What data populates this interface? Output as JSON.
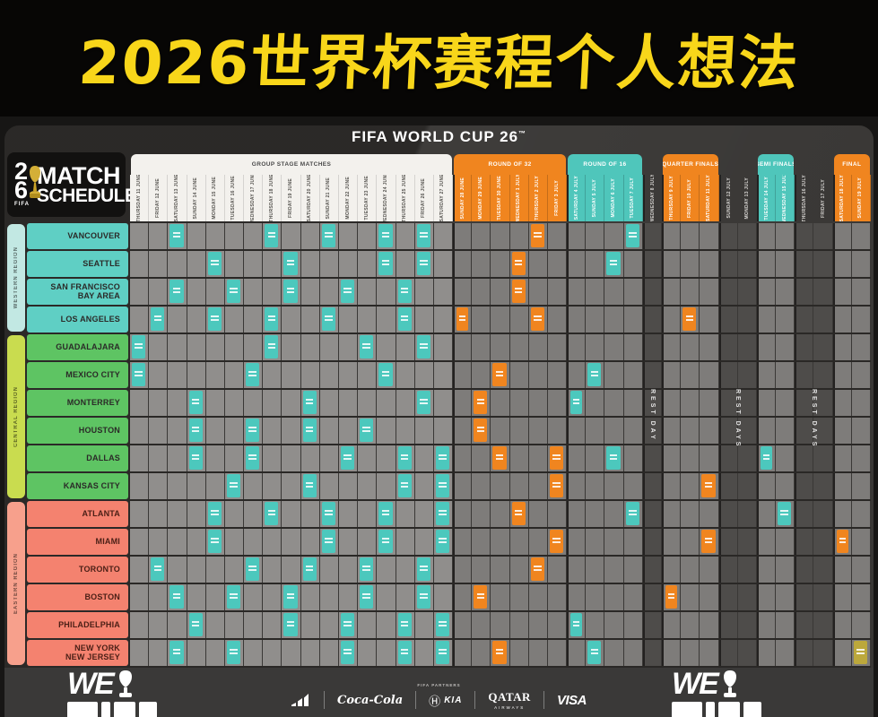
{
  "banner": {
    "title": "2026世界杯赛程个人想法"
  },
  "poster_header": {
    "fifa_text": "FIFA WORLD CUP",
    "logo_26": "26",
    "tm": "™"
  },
  "match_logo": {
    "digit_top": "2",
    "digit_bottom": "6",
    "fifa_small": "FIFA",
    "title_line1": "MATCH",
    "title_line2": "SCHEDULE"
  },
  "colors": {
    "banner_yellow": "#F8D61A",
    "teal": "#4CC8BD",
    "orange": "#F0851F",
    "final_gold": "#BCA83C",
    "western_teal": "#5FCFC4",
    "central_green": "#5EC463",
    "eastern_salmon": "#F4826F"
  },
  "schedule": {
    "phases": [
      {
        "id": "group",
        "label": "GROUP STAGE MATCHES",
        "start": 0,
        "end": 16,
        "style": "white"
      },
      {
        "id": "r32",
        "label": "ROUND OF 32",
        "start": 17,
        "end": 22,
        "style": "orange"
      },
      {
        "id": "r16",
        "label": "ROUND OF 16",
        "start": 23,
        "end": 26,
        "style": "teal"
      },
      {
        "id": "rest1",
        "label": "",
        "start": 27,
        "end": 27,
        "style": "rest"
      },
      {
        "id": "qf",
        "label": "QUARTER FINALS",
        "start": 28,
        "end": 30,
        "style": "orange"
      },
      {
        "id": "rest2",
        "label": "",
        "start": 31,
        "end": 32,
        "style": "rest"
      },
      {
        "id": "sf",
        "label": "SEMI FINALS",
        "start": 33,
        "end": 34,
        "style": "teal"
      },
      {
        "id": "rest3",
        "label": "",
        "start": 35,
        "end": 36,
        "style": "rest"
      },
      {
        "id": "final",
        "label": "FINAL",
        "start": 37,
        "end": 38,
        "style": "orange"
      }
    ],
    "columns": [
      "THURSDAY 11 JUNE",
      "FRIDAY 12 JUNE",
      "SATURDAY 13 JUNE",
      "SUNDAY 14 JUNE",
      "MONDAY 15 JUNE",
      "TUESDAY 16 JUNE",
      "WEDNESDAY 17 JUNE",
      "THURSDAY 18 JUNE",
      "FRIDAY 19 JUNE",
      "SATURDAY 20 JUNE",
      "SUNDAY 21 JUNE",
      "MONDAY 22 JUNE",
      "TUESDAY 23 JUNE",
      "WEDNESDAY 24 JUNE",
      "THURSDAY 25 JUNE",
      "FRIDAY 26 JUNE",
      "SATURDAY 27 JUNE",
      "SUNDAY 28 JUNE",
      "MONDAY 29 JUNE",
      "TUESDAY 30 JUNE",
      "WEDNESDAY 1 JULY",
      "THURSDAY 2 JULY",
      "FRIDAY 3 JULY",
      "SATURDAY 4 JULY",
      "SUNDAY 5 JULY",
      "MONDAY 6 JULY",
      "TUESDAY 7 JULY",
      "WEDNESDAY 8 JULY",
      "THURSDAY 9 JULY",
      "FRIDAY 10 JULY",
      "SATURDAY 11 JULY",
      "SUNDAY 12 JULY",
      "MONDAY 13 JULY",
      "TUESDAY 14 JULY",
      "WEDNESDAY 15 JULY",
      "THURSDAY 16 JULY",
      "FRIDAY 17 JULY",
      "SATURDAY 18 JULY",
      "SUNDAY 19 JULY"
    ],
    "rest_overlays": [
      {
        "col": 27,
        "span": 1,
        "label": "REST DAY"
      },
      {
        "col": 31,
        "span": 2,
        "label": "REST DAYS"
      },
      {
        "col": 35,
        "span": 2,
        "label": "REST DAYS"
      }
    ],
    "regions": [
      {
        "name": "WESTERN REGION",
        "row_start": 0,
        "row_end": 3,
        "class": "rb-w",
        "city_class": "w"
      },
      {
        "name": "CENTRAL REGION",
        "row_start": 4,
        "row_end": 9,
        "class": "rb-c",
        "city_class": "c"
      },
      {
        "name": "EASTERN REGION",
        "row_start": 10,
        "row_end": 15,
        "class": "rb-e",
        "city_class": "e"
      }
    ],
    "cities": [
      "VANCOUVER",
      "SEATTLE",
      "SAN FRANCISCO\nBAY AREA",
      "LOS ANGELES",
      "GUADALAJARA",
      "MEXICO CITY",
      "MONTERREY",
      "HOUSTON",
      "DALLAS",
      "KANSAS CITY",
      "ATLANTA",
      "MIAMI",
      "TORONTO",
      "BOSTON",
      "PHILADELPHIA",
      "NEW YORK\nNEW JERSEY"
    ],
    "matches": [
      [
        0,
        2,
        0
      ],
      [
        0,
        7,
        0
      ],
      [
        0,
        10,
        0
      ],
      [
        0,
        13,
        0
      ],
      [
        0,
        15,
        0
      ],
      [
        0,
        21,
        1
      ],
      [
        0,
        26,
        0
      ],
      [
        1,
        4,
        0
      ],
      [
        1,
        8,
        0
      ],
      [
        1,
        13,
        0
      ],
      [
        1,
        15,
        0
      ],
      [
        1,
        20,
        1
      ],
      [
        1,
        25,
        0
      ],
      [
        2,
        2,
        0
      ],
      [
        2,
        5,
        0
      ],
      [
        2,
        8,
        0
      ],
      [
        2,
        11,
        0
      ],
      [
        2,
        14,
        0
      ],
      [
        2,
        20,
        1
      ],
      [
        3,
        1,
        0
      ],
      [
        3,
        4,
        0
      ],
      [
        3,
        7,
        0
      ],
      [
        3,
        10,
        0
      ],
      [
        3,
        14,
        0
      ],
      [
        3,
        17,
        1
      ],
      [
        3,
        21,
        1
      ],
      [
        3,
        29,
        1
      ],
      [
        4,
        0,
        0
      ],
      [
        4,
        7,
        0
      ],
      [
        4,
        12,
        0
      ],
      [
        4,
        15,
        0
      ],
      [
        5,
        0,
        0
      ],
      [
        5,
        6,
        0
      ],
      [
        5,
        13,
        0
      ],
      [
        5,
        19,
        1
      ],
      [
        5,
        24,
        0
      ],
      [
        6,
        3,
        0
      ],
      [
        6,
        9,
        0
      ],
      [
        6,
        15,
        0
      ],
      [
        6,
        18,
        1
      ],
      [
        6,
        23,
        0
      ],
      [
        7,
        3,
        0
      ],
      [
        7,
        6,
        0
      ],
      [
        7,
        9,
        0
      ],
      [
        7,
        12,
        0
      ],
      [
        7,
        18,
        1
      ],
      [
        8,
        3,
        0
      ],
      [
        8,
        6,
        0
      ],
      [
        8,
        11,
        0
      ],
      [
        8,
        14,
        0
      ],
      [
        8,
        16,
        0
      ],
      [
        8,
        19,
        1
      ],
      [
        8,
        22,
        1
      ],
      [
        8,
        25,
        0
      ],
      [
        8,
        33,
        0
      ],
      [
        9,
        5,
        0
      ],
      [
        9,
        9,
        0
      ],
      [
        9,
        14,
        0
      ],
      [
        9,
        16,
        0
      ],
      [
        9,
        22,
        1
      ],
      [
        9,
        30,
        1
      ],
      [
        10,
        4,
        0
      ],
      [
        10,
        7,
        0
      ],
      [
        10,
        10,
        0
      ],
      [
        10,
        13,
        0
      ],
      [
        10,
        16,
        0
      ],
      [
        10,
        20,
        1
      ],
      [
        10,
        26,
        0
      ],
      [
        10,
        34,
        0
      ],
      [
        11,
        4,
        0
      ],
      [
        11,
        10,
        0
      ],
      [
        11,
        13,
        0
      ],
      [
        11,
        16,
        0
      ],
      [
        11,
        22,
        1
      ],
      [
        11,
        30,
        1
      ],
      [
        11,
        37,
        1
      ],
      [
        12,
        1,
        0
      ],
      [
        12,
        6,
        0
      ],
      [
        12,
        9,
        0
      ],
      [
        12,
        12,
        0
      ],
      [
        12,
        15,
        0
      ],
      [
        12,
        21,
        1
      ],
      [
        13,
        2,
        0
      ],
      [
        13,
        5,
        0
      ],
      [
        13,
        8,
        0
      ],
      [
        13,
        12,
        0
      ],
      [
        13,
        15,
        0
      ],
      [
        13,
        18,
        1
      ],
      [
        13,
        28,
        1
      ],
      [
        14,
        3,
        0
      ],
      [
        14,
        8,
        0
      ],
      [
        14,
        11,
        0
      ],
      [
        14,
        14,
        0
      ],
      [
        14,
        16,
        0
      ],
      [
        14,
        23,
        0
      ],
      [
        15,
        2,
        0
      ],
      [
        15,
        5,
        0
      ],
      [
        15,
        11,
        0
      ],
      [
        15,
        14,
        0
      ],
      [
        15,
        16,
        0
      ],
      [
        15,
        19,
        1
      ],
      [
        15,
        24,
        0
      ],
      [
        15,
        38,
        2
      ]
    ]
  },
  "footer": {
    "partners_caption": "FIFA PARTNERS",
    "we_logo_text": "WE",
    "sponsors": {
      "adidas": "adidas",
      "cocacola": "Coca-Cola",
      "hyundai": "Ⓗ",
      "kia": "KIA",
      "qatar": "QATAR",
      "qatar_sub": "AIRWAYS",
      "visa": "VISA"
    }
  }
}
